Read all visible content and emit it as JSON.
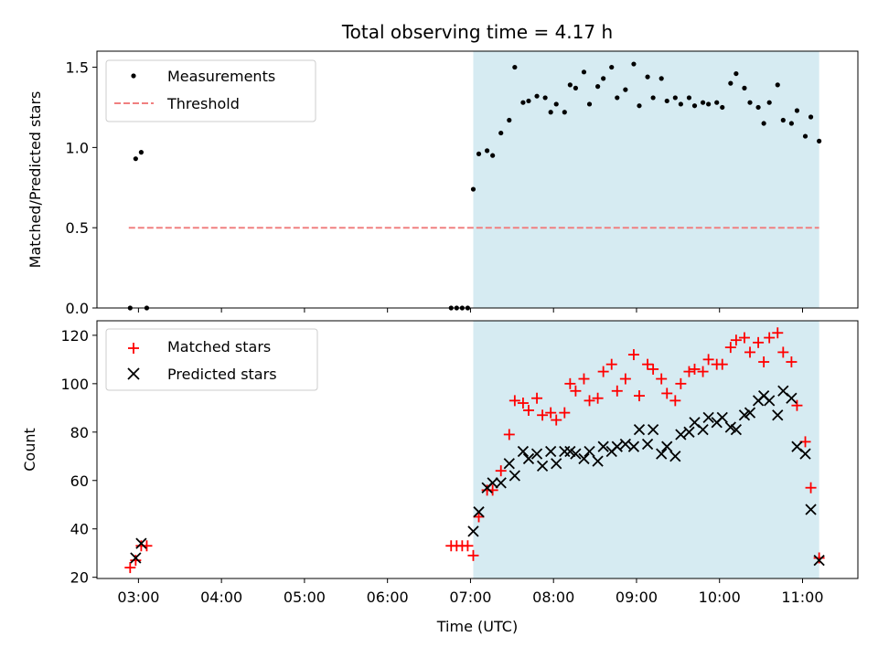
{
  "chart_data": [
    {
      "type": "scatter",
      "title": "Total observing time = 4.17 h",
      "xlabel": "",
      "ylabel": "Matched/Predicted stars",
      "ylim": [
        0,
        1.6
      ],
      "yticks": [
        "0.0",
        "0.5",
        "1.0",
        "1.5"
      ],
      "shaded_range": [
        "07:02",
        "11:12"
      ],
      "shade_color": "#add8e6",
      "series": [
        {
          "name": "Measurements",
          "color": "#000000",
          "marker": "dot",
          "points": [
            [
              "02:54",
              0.0
            ],
            [
              "02:58",
              0.93
            ],
            [
              "03:02",
              0.97
            ],
            [
              "03:06",
              0.0
            ],
            [
              "06:46",
              0.0
            ],
            [
              "06:50",
              0.0
            ],
            [
              "06:54",
              0.0
            ],
            [
              "06:58",
              0.0
            ],
            [
              "07:02",
              0.74
            ],
            [
              "07:06",
              0.96
            ],
            [
              "07:12",
              0.98
            ],
            [
              "07:16",
              0.95
            ],
            [
              "07:22",
              1.09
            ],
            [
              "07:28",
              1.17
            ],
            [
              "07:32",
              1.5
            ],
            [
              "07:38",
              1.28
            ],
            [
              "07:42",
              1.29
            ],
            [
              "07:48",
              1.32
            ],
            [
              "07:54",
              1.31
            ],
            [
              "07:58",
              1.22
            ],
            [
              "08:02",
              1.27
            ],
            [
              "08:08",
              1.22
            ],
            [
              "08:12",
              1.39
            ],
            [
              "08:16",
              1.37
            ],
            [
              "08:22",
              1.47
            ],
            [
              "08:26",
              1.27
            ],
            [
              "08:32",
              1.38
            ],
            [
              "08:36",
              1.43
            ],
            [
              "08:42",
              1.5
            ],
            [
              "08:46",
              1.31
            ],
            [
              "08:52",
              1.36
            ],
            [
              "08:58",
              1.52
            ],
            [
              "09:02",
              1.26
            ],
            [
              "09:08",
              1.44
            ],
            [
              "09:12",
              1.31
            ],
            [
              "09:18",
              1.43
            ],
            [
              "09:22",
              1.29
            ],
            [
              "09:28",
              1.31
            ],
            [
              "09:32",
              1.27
            ],
            [
              "09:38",
              1.31
            ],
            [
              "09:42",
              1.26
            ],
            [
              "09:48",
              1.28
            ],
            [
              "09:52",
              1.27
            ],
            [
              "09:58",
              1.28
            ],
            [
              "10:02",
              1.25
            ],
            [
              "10:08",
              1.4
            ],
            [
              "10:12",
              1.46
            ],
            [
              "10:18",
              1.37
            ],
            [
              "10:22",
              1.28
            ],
            [
              "10:28",
              1.25
            ],
            [
              "10:32",
              1.15
            ],
            [
              "10:36",
              1.28
            ],
            [
              "10:42",
              1.39
            ],
            [
              "10:46",
              1.17
            ],
            [
              "10:52",
              1.15
            ],
            [
              "10:56",
              1.23
            ],
            [
              "11:02",
              1.07
            ],
            [
              "11:06",
              1.19
            ],
            [
              "11:12",
              1.04
            ]
          ]
        },
        {
          "name": "Threshold",
          "color": "#f08080",
          "marker": "dashed-line",
          "points": [
            [
              "02:53",
              0.5
            ],
            [
              "11:12",
              0.5
            ]
          ]
        }
      ]
    },
    {
      "type": "scatter",
      "title": "",
      "xlabel": "Time (UTC)",
      "ylabel": "Count",
      "ylim": [
        19.5,
        126
      ],
      "yticks": [
        "20",
        "40",
        "60",
        "80",
        "100",
        "120"
      ],
      "xticks": [
        "03:00",
        "04:00",
        "05:00",
        "06:00",
        "07:00",
        "08:00",
        "09:00",
        "10:00",
        "11:00"
      ],
      "shaded_range": [
        "07:02",
        "11:12"
      ],
      "shade_color": "#add8e6",
      "series": [
        {
          "name": "Matched stars",
          "color": "#ff0000",
          "marker": "plus",
          "points": [
            [
              "02:54",
              24
            ],
            [
              "02:58",
              27
            ],
            [
              "03:02",
              33
            ],
            [
              "03:06",
              33
            ],
            [
              "06:46",
              33
            ],
            [
              "06:50",
              33
            ],
            [
              "06:54",
              33
            ],
            [
              "06:58",
              33
            ],
            [
              "07:02",
              29
            ],
            [
              "07:06",
              45
            ],
            [
              "07:12",
              56
            ],
            [
              "07:16",
              56
            ],
            [
              "07:22",
              64
            ],
            [
              "07:28",
              79
            ],
            [
              "07:32",
              93
            ],
            [
              "07:38",
              92
            ],
            [
              "07:42",
              89
            ],
            [
              "07:48",
              94
            ],
            [
              "07:52",
              87
            ],
            [
              "07:58",
              88
            ],
            [
              "08:02",
              85
            ],
            [
              "08:08",
              88
            ],
            [
              "08:12",
              100
            ],
            [
              "08:16",
              97
            ],
            [
              "08:22",
              102
            ],
            [
              "08:26",
              93
            ],
            [
              "08:32",
              94
            ],
            [
              "08:36",
              105
            ],
            [
              "08:42",
              108
            ],
            [
              "08:46",
              97
            ],
            [
              "08:52",
              102
            ],
            [
              "08:58",
              112
            ],
            [
              "09:02",
              95
            ],
            [
              "09:08",
              108
            ],
            [
              "09:12",
              106
            ],
            [
              "09:18",
              102
            ],
            [
              "09:22",
              96
            ],
            [
              "09:28",
              93
            ],
            [
              "09:32",
              100
            ],
            [
              "09:38",
              105
            ],
            [
              "09:42",
              106
            ],
            [
              "09:48",
              105
            ],
            [
              "09:52",
              110
            ],
            [
              "09:58",
              108
            ],
            [
              "10:02",
              108
            ],
            [
              "10:08",
              115
            ],
            [
              "10:12",
              118
            ],
            [
              "10:18",
              119
            ],
            [
              "10:22",
              113
            ],
            [
              "10:28",
              117
            ],
            [
              "10:32",
              109
            ],
            [
              "10:36",
              119
            ],
            [
              "10:42",
              121
            ],
            [
              "10:46",
              113
            ],
            [
              "10:52",
              109
            ],
            [
              "10:56",
              91
            ],
            [
              "11:02",
              76
            ],
            [
              "11:06",
              57
            ],
            [
              "11:12",
              28
            ]
          ]
        },
        {
          "name": "Predicted stars",
          "color": "#000000",
          "marker": "x",
          "points": [
            [
              "02:58",
              28
            ],
            [
              "03:02",
              34
            ],
            [
              "07:02",
              39
            ],
            [
              "07:06",
              47
            ],
            [
              "07:12",
              57
            ],
            [
              "07:16",
              59
            ],
            [
              "07:22",
              59
            ],
            [
              "07:28",
              67
            ],
            [
              "07:32",
              62
            ],
            [
              "07:38",
              72
            ],
            [
              "07:42",
              69
            ],
            [
              "07:48",
              71
            ],
            [
              "07:52",
              66
            ],
            [
              "07:58",
              72
            ],
            [
              "08:02",
              67
            ],
            [
              "08:08",
              72
            ],
            [
              "08:12",
              72
            ],
            [
              "08:16",
              71
            ],
            [
              "08:22",
              69
            ],
            [
              "08:26",
              72
            ],
            [
              "08:32",
              68
            ],
            [
              "08:36",
              74
            ],
            [
              "08:42",
              72
            ],
            [
              "08:46",
              74
            ],
            [
              "08:52",
              75
            ],
            [
              "08:58",
              74
            ],
            [
              "09:02",
              81
            ],
            [
              "09:08",
              75
            ],
            [
              "09:12",
              81
            ],
            [
              "09:18",
              71
            ],
            [
              "09:22",
              74
            ],
            [
              "09:28",
              70
            ],
            [
              "09:32",
              79
            ],
            [
              "09:38",
              80
            ],
            [
              "09:42",
              84
            ],
            [
              "09:48",
              81
            ],
            [
              "09:52",
              86
            ],
            [
              "09:58",
              84
            ],
            [
              "10:02",
              86
            ],
            [
              "10:08",
              82
            ],
            [
              "10:12",
              81
            ],
            [
              "10:18",
              87
            ],
            [
              "10:22",
              88
            ],
            [
              "10:28",
              93
            ],
            [
              "10:32",
              95
            ],
            [
              "10:36",
              93
            ],
            [
              "10:42",
              87
            ],
            [
              "10:46",
              97
            ],
            [
              "10:52",
              94
            ],
            [
              "10:56",
              74
            ],
            [
              "11:02",
              71
            ],
            [
              "11:06",
              48
            ],
            [
              "11:12",
              27
            ]
          ]
        }
      ]
    }
  ]
}
